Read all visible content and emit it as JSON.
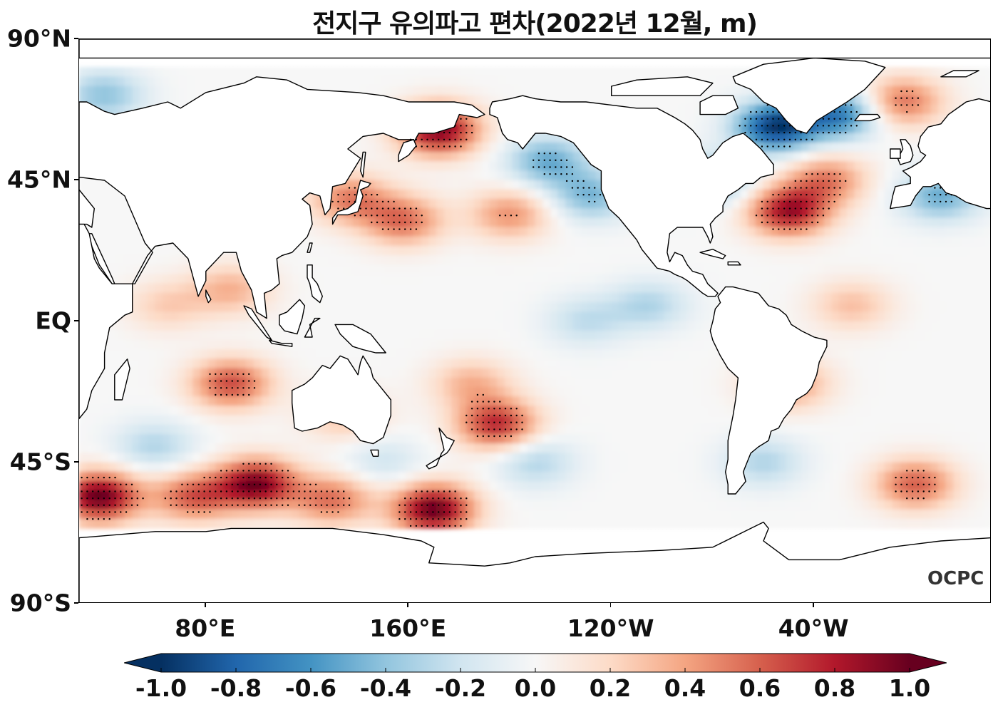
{
  "title": "전지구 유의파고 편차(2022년 12월, m)",
  "watermark": "OCPC",
  "map": {
    "projection": "PlateCarree (central longitude 180)",
    "lon_range": [
      30,
      390
    ],
    "lat_range": [
      -90,
      90
    ],
    "lat_ticks": [
      {
        "label": "90°N",
        "lat": 90
      },
      {
        "label": "45°N",
        "lat": 45
      },
      {
        "label": "EQ",
        "lat": 0
      },
      {
        "label": "45°S",
        "lat": -45
      },
      {
        "label": "90°S",
        "lat": -90
      }
    ],
    "lon_ticks": [
      {
        "label": "80°E",
        "lon": 80
      },
      {
        "label": "160°E",
        "lon": 160
      },
      {
        "label": "120°W",
        "lon": 240
      },
      {
        "label": "40°W",
        "lon": 320
      }
    ],
    "stippling": "statistically significant anomalies"
  },
  "colorbar": {
    "colormap": "RdBu_r",
    "min": -1.0,
    "max": 1.0,
    "extend": "both",
    "tick_labels": [
      "-1.0",
      "-0.8",
      "-0.6",
      "-0.4",
      "-0.2",
      "0.0",
      "0.2",
      "0.4",
      "0.6",
      "0.8",
      "1.0"
    ],
    "tick_values": [
      -1.0,
      -0.8,
      -0.6,
      -0.4,
      -0.2,
      0.0,
      0.2,
      0.4,
      0.6,
      0.8,
      1.0
    ],
    "colors": [
      "#053061",
      "#2166ac",
      "#4393c3",
      "#92c5de",
      "#d1e5f0",
      "#f7f7f7",
      "#fddbc7",
      "#f4a582",
      "#d6604d",
      "#b2182b",
      "#67001f"
    ]
  },
  "chart_data": {
    "type": "heatmap",
    "title": "전지구 유의파고 편차(2022년 12월, m)",
    "units": "m",
    "xlim": [
      30,
      390
    ],
    "ylim": [
      -90,
      90
    ],
    "vlim": [
      -1.0,
      1.0
    ],
    "anomaly_centers": [
      {
        "lon": 172,
        "lat": 61,
        "value": 0.95
      },
      {
        "lon": 215,
        "lat": 51,
        "value": -0.5
      },
      {
        "lon": 232,
        "lat": 40,
        "value": -0.45
      },
      {
        "lon": 200,
        "lat": 34,
        "value": 0.45
      },
      {
        "lon": 158,
        "lat": 32,
        "value": 0.55
      },
      {
        "lon": 137,
        "lat": 39,
        "value": 0.5
      },
      {
        "lon": 305,
        "lat": 62,
        "value": -0.95
      },
      {
        "lon": 330,
        "lat": 66,
        "value": -0.7
      },
      {
        "lon": 325,
        "lat": 45,
        "value": 0.5
      },
      {
        "lon": 310,
        "lat": 35,
        "value": 0.85
      },
      {
        "lon": 280,
        "lat": 45,
        "value": -0.45
      },
      {
        "lon": 355,
        "lat": 70,
        "value": 0.55
      },
      {
        "lon": 370,
        "lat": 40,
        "value": -0.5
      },
      {
        "lon": 40,
        "lat": 72,
        "value": -0.4
      },
      {
        "lon": 255,
        "lat": 5,
        "value": -0.3
      },
      {
        "lon": 230,
        "lat": 0,
        "value": -0.25
      },
      {
        "lon": 90,
        "lat": -20,
        "value": 0.65
      },
      {
        "lon": 90,
        "lat": 10,
        "value": 0.35
      },
      {
        "lon": 65,
        "lat": 5,
        "value": 0.25
      },
      {
        "lon": 135,
        "lat": -30,
        "value": 0.3
      },
      {
        "lon": 195,
        "lat": -33,
        "value": 0.75
      },
      {
        "lon": 185,
        "lat": -20,
        "value": 0.35
      },
      {
        "lon": 310,
        "lat": -20,
        "value": 0.45
      },
      {
        "lon": 335,
        "lat": 5,
        "value": 0.3
      },
      {
        "lon": 38,
        "lat": -56,
        "value": 1.0
      },
      {
        "lon": 100,
        "lat": -52,
        "value": 0.95
      },
      {
        "lon": 75,
        "lat": -56,
        "value": 0.6
      },
      {
        "lon": 130,
        "lat": -57,
        "value": 0.55
      },
      {
        "lon": 170,
        "lat": -60,
        "value": 1.0
      },
      {
        "lon": 360,
        "lat": -52,
        "value": 0.6
      },
      {
        "lon": 210,
        "lat": -45,
        "value": -0.3
      },
      {
        "lon": 300,
        "lat": -45,
        "value": -0.3
      },
      {
        "lon": 60,
        "lat": -40,
        "value": -0.3
      },
      {
        "lon": 150,
        "lat": -45,
        "value": -0.2
      }
    ]
  }
}
